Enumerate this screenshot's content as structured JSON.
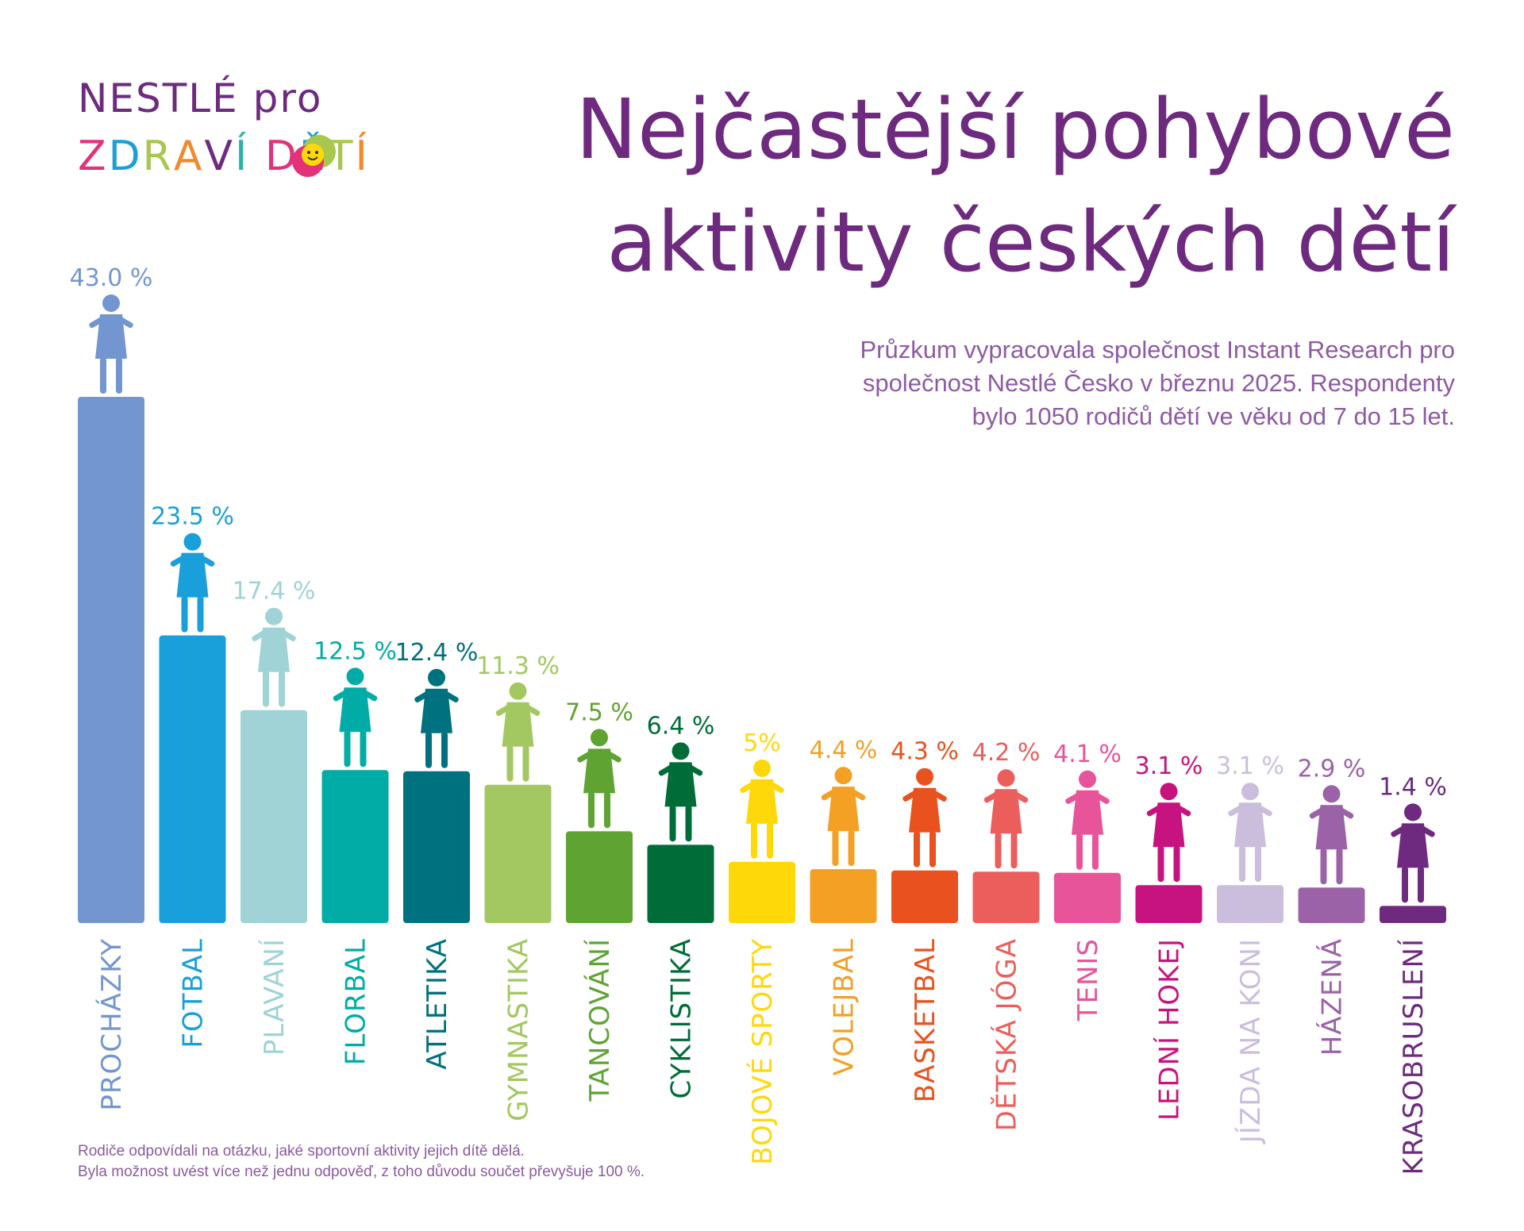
{
  "logo": {
    "line1": "NESTLÉ pro",
    "line2_letters": [
      {
        "ch": "Z",
        "color": "#e2337a"
      },
      {
        "ch": "D",
        "color": "#1a9fd8"
      },
      {
        "ch": "R",
        "color": "#a8c74c"
      },
      {
        "ch": "A",
        "color": "#f08a2c"
      },
      {
        "ch": "V",
        "color": "#6d2a7e"
      },
      {
        "ch": "Í",
        "color": "#2fb2a6"
      },
      {
        "ch": " ",
        "color": "#ffffff"
      },
      {
        "ch": "D",
        "color": "#e2337a"
      },
      {
        "ch": "Ě",
        "color": "#1a9fd8"
      },
      {
        "ch": "T",
        "color": "#a8c74c"
      },
      {
        "ch": "Í",
        "color": "#f08a2c"
      }
    ]
  },
  "title": {
    "line1": "Nejčastější pohybové",
    "line2": "aktivity českých dětí"
  },
  "subtitle": {
    "line1": "Průzkum vypracovala společnost Instant Research pro",
    "line2": "společnost Nestlé Česko v březnu 2025. Respondenty",
    "line3": "bylo 1050 rodičů dětí ve věku od 7 do 15 let."
  },
  "footnote": {
    "line1": "Rodiče odpovídali na otázku, jaké sportovní aktivity jejich dítě dělá.",
    "line2": "Byla možnost uvést více než jednu odpověď, z toho důvodu součet převyšuje 100 %."
  },
  "chart_data": {
    "type": "bar",
    "title": "Nejčastější pohybové aktivity českých dětí",
    "unit": "%",
    "ylim": [
      0,
      45
    ],
    "grid": false,
    "legend": "none",
    "categories": [
      "PROCHÁZKY",
      "FOTBAL",
      "PLAVANÍ",
      "FLORBAL",
      "ATLETIKA",
      "GYMNASTIKA",
      "TANCOVÁNÍ",
      "CYKLISTIKA",
      "BOJOVÉ SPORTY",
      "VOLEJBAL",
      "BASKETBAL",
      "DĚTSKÁ JÓGA",
      "TENIS",
      "LEDNÍ HOKEJ",
      "JÍZDA NA KONI",
      "HÁZENÁ",
      "KRASOBRUSLENÍ"
    ],
    "values": [
      43.0,
      23.5,
      17.4,
      12.5,
      12.4,
      11.3,
      7.5,
      6.4,
      5,
      4.4,
      4.3,
      4.2,
      4.1,
      3.1,
      3.1,
      2.9,
      1.4
    ],
    "value_labels": [
      "43.0 %",
      "23.5 %",
      "17.4 %",
      "12.5 %",
      "12.4 %",
      "11.3 %",
      "7.5 %",
      "6.4 %",
      "5%",
      "4.4 %",
      "4.3 %",
      "4.2 %",
      "4.1 %",
      "3.1 %",
      "3.1 %",
      "2.9 %",
      "1.4 %"
    ],
    "colors": [
      "#7396d0",
      "#199fd9",
      "#9fd3d6",
      "#00aca5",
      "#00717e",
      "#a3c861",
      "#5fa432",
      "#006d38",
      "#ffd80a",
      "#f3a024",
      "#e9521e",
      "#eb5e5b",
      "#e8549a",
      "#c7137f",
      "#cbbedd",
      "#9b62a8",
      "#6d2a7e"
    ]
  }
}
